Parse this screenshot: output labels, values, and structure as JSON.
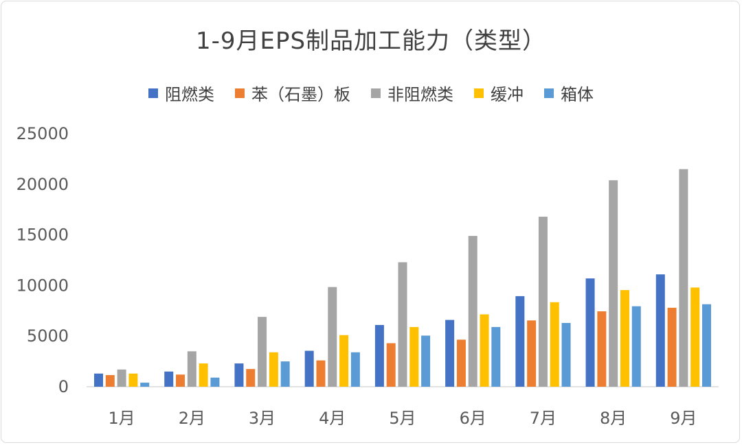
{
  "chart_data": {
    "type": "bar",
    "title": "1-9月EPS制品加工能力（类型）",
    "categories": [
      "1月",
      "2月",
      "3月",
      "4月",
      "5月",
      "6月",
      "7月",
      "8月",
      "9月"
    ],
    "series": [
      {
        "name": "阻燃类",
        "color": "#4472c4",
        "values": [
          1300,
          1500,
          2300,
          3550,
          6100,
          6600,
          8950,
          10700,
          11100
        ]
      },
      {
        "name": "苯（石墨）板",
        "color": "#ed7d31",
        "values": [
          1150,
          1200,
          1750,
          2600,
          4300,
          4650,
          6550,
          7450,
          7800
        ]
      },
      {
        "name": "非阻燃类",
        "color": "#a5a5a5",
        "values": [
          1700,
          3500,
          6900,
          9850,
          12300,
          14900,
          16800,
          20400,
          21500
        ]
      },
      {
        "name": "缓冲",
        "color": "#ffc000",
        "values": [
          1300,
          2300,
          3400,
          5100,
          5900,
          7150,
          8350,
          9550,
          9800
        ]
      },
      {
        "name": "箱体",
        "color": "#5b9bd5",
        "values": [
          400,
          900,
          2500,
          3400,
          5050,
          5900,
          6300,
          7950,
          8150
        ]
      }
    ],
    "yticks": [
      "0",
      "5000",
      "10000",
      "15000",
      "20000",
      "25000"
    ],
    "ylim": [
      0,
      25000
    ],
    "legend_position": "top",
    "grid": false
  }
}
